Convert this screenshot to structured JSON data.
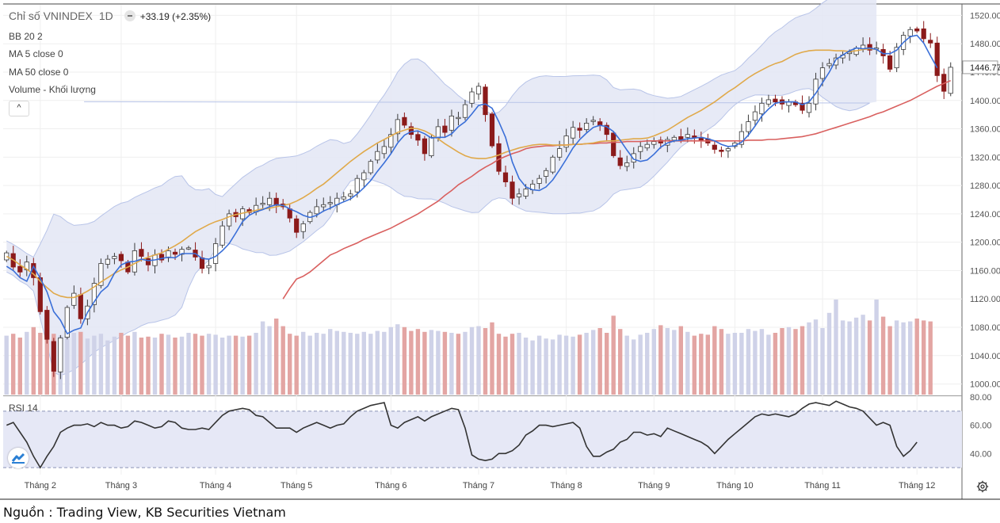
{
  "header": {
    "symbol_title": "Chỉ số VNINDEX",
    "interval": "1D",
    "change": "+33.19 (+2.35%)"
  },
  "indicators": {
    "bb": "BB 20 2",
    "ma5": "MA 5 close 0",
    "ma50": "MA 50 close 0",
    "volume": "Volume - Khối lượng",
    "rsi": "RSI 14"
  },
  "collapse_symbol": "^",
  "source": "Nguồn : Trading View, KB Securities Vietnam",
  "colors": {
    "up_candle_fill": "#ffffff",
    "up_candle_border": "#3a3a3a",
    "down_candle": "#8b1a1a",
    "ma5": "#3a6fd8",
    "ma20": "#e0a94a",
    "ma50": "#d9605f",
    "bb_fill": "#e3e6f4",
    "bb_line": "#b8c4e8",
    "volume_up": "#cfd2e8",
    "volume_down": "#e3a5a3",
    "rsi_line": "#333333",
    "rsi_band": "#e6e8f6"
  },
  "chart_data": {
    "type": "candlestick",
    "title": "Chỉ số VNINDEX",
    "price_axis": {
      "ticks": [
        1000,
        1040,
        1080,
        1120,
        1160,
        1200,
        1240,
        1280,
        1320,
        1360,
        1400,
        1440,
        1480,
        1520
      ],
      "labels": [
        "1000.00",
        "1040.00",
        "1080.00",
        "1120.00",
        "1160.00",
        "1200.00",
        "1240.00",
        "1280.00",
        "1320.00",
        "1360.00",
        "1400.00",
        "1440.00",
        "1480.00",
        "1520.00"
      ],
      "range": [
        985,
        1535
      ],
      "last_price": 1446.77,
      "last_price_label": "1446.77"
    },
    "rsi_axis": {
      "labels": [
        "80.00",
        "60.00",
        "40.00"
      ],
      "ticks": [
        80,
        60,
        40
      ],
      "range": [
        25,
        80
      ],
      "overbought": 70,
      "oversold": 30
    },
    "months": [
      "Tháng 2",
      "Tháng 3",
      "Tháng 4",
      "Tháng 5",
      "Tháng 6",
      "Tháng 7",
      "Tháng 8",
      "Tháng 9",
      "Tháng 10",
      "Tháng 11",
      "Tháng 12"
    ],
    "month_start_index": [
      5,
      17,
      31,
      43,
      57,
      70,
      83,
      96,
      108,
      121,
      135
    ],
    "close": [
      1185,
      1165,
      1158,
      1172,
      1150,
      1102,
      1063,
      1018,
      1065,
      1108,
      1128,
      1092,
      1110,
      1142,
      1170,
      1176,
      1180,
      1174,
      1158,
      1188,
      1180,
      1168,
      1182,
      1175,
      1188,
      1183,
      1190,
      1192,
      1179,
      1163,
      1167,
      1198,
      1223,
      1240,
      1236,
      1247,
      1242,
      1252,
      1255,
      1262,
      1252,
      1250,
      1234,
      1214,
      1226,
      1242,
      1250,
      1253,
      1256,
      1262,
      1264,
      1268,
      1290,
      1298,
      1314,
      1328,
      1335,
      1352,
      1373,
      1365,
      1352,
      1344,
      1325,
      1348,
      1363,
      1355,
      1378,
      1376,
      1394,
      1412,
      1420,
      1380,
      1336,
      1300,
      1285,
      1262,
      1268,
      1275,
      1282,
      1290,
      1301,
      1320,
      1332,
      1350,
      1362,
      1358,
      1368,
      1372,
      1365,
      1352,
      1322,
      1308,
      1312,
      1325,
      1335,
      1338,
      1342,
      1340,
      1345,
      1348,
      1345,
      1352,
      1348,
      1344,
      1340,
      1331,
      1328,
      1332,
      1340,
      1356,
      1370,
      1384,
      1396,
      1401,
      1398,
      1395,
      1398,
      1394,
      1386,
      1396,
      1430,
      1446,
      1452,
      1460,
      1464,
      1468,
      1474,
      1478,
      1471,
      1474,
      1463,
      1444,
      1475,
      1492,
      1500,
      1498,
      1487,
      1481,
      1435,
      1413,
      1446.77
    ],
    "volume_millions": [
      620,
      640,
      600,
      660,
      710,
      650,
      590,
      640,
      620,
      630,
      650,
      660,
      590,
      620,
      640,
      570,
      610,
      650,
      620,
      660,
      600,
      610,
      600,
      640,
      630,
      600,
      610,
      650,
      640,
      620,
      640,
      630,
      600,
      620,
      620,
      610,
      620,
      650,
      770,
      720,
      800,
      720,
      640,
      620,
      660,
      620,
      650,
      640,
      690,
      670,
      660,
      650,
      640,
      660,
      640,
      670,
      660,
      710,
      740,
      710,
      670,
      690,
      660,
      680,
      670,
      660,
      650,
      640,
      660,
      710,
      720,
      700,
      760,
      640,
      610,
      640,
      650,
      600,
      570,
      620,
      590,
      580,
      630,
      620,
      610,
      630,
      650,
      680,
      700,
      650,
      830,
      690,
      620,
      580,
      630,
      650,
      690,
      730,
      700,
      680,
      720,
      660,
      620,
      640,
      630,
      720,
      690,
      640,
      650,
      650,
      690,
      670,
      690,
      630,
      650,
      700,
      710,
      690,
      720,
      760,
      790,
      700,
      860,
      1000,
      780,
      770,
      810,
      840,
      780,
      1000,
      820,
      720,
      780,
      760,
      770,
      800,
      780,
      770
    ],
    "ma5": [
      1166,
      1160,
      1150,
      1145,
      1166,
      1149,
      1130,
      1102,
      1090,
      1071,
      1076,
      1079,
      1101,
      1116,
      1130,
      1138,
      1156,
      1168,
      1172,
      1173,
      1176,
      1174,
      1175,
      1177,
      1179,
      1178,
      1184,
      1184,
      1184,
      1177,
      1176,
      1180,
      1188,
      1198,
      1213,
      1229,
      1238,
      1243,
      1246,
      1250,
      1253,
      1252,
      1247,
      1243,
      1238,
      1235,
      1238,
      1244,
      1248,
      1253,
      1257,
      1261,
      1268,
      1277,
      1287,
      1300,
      1312,
      1325,
      1340,
      1351,
      1356,
      1357,
      1353,
      1347,
      1348,
      1348,
      1353,
      1363,
      1370,
      1381,
      1393,
      1395,
      1389,
      1370,
      1348,
      1313,
      1290,
      1278,
      1274,
      1273,
      1278,
      1288,
      1302,
      1317,
      1333,
      1345,
      1354,
      1362,
      1365,
      1363,
      1356,
      1344,
      1330,
      1317,
      1314,
      1316,
      1324,
      1334,
      1340,
      1343,
      1344,
      1346,
      1347,
      1348,
      1346,
      1343,
      1338,
      1335,
      1336,
      1341,
      1351,
      1364,
      1378,
      1388,
      1396,
      1398,
      1398,
      1398,
      1394,
      1398,
      1410,
      1425,
      1440,
      1458,
      1464,
      1470,
      1474,
      1473,
      1474,
      1472,
      1466,
      1466,
      1471,
      1482,
      1490,
      1492,
      1481,
      1463,
      1446
    ],
    "ma20": [
      1180,
      1175,
      1168,
      1162,
      1155,
      1145,
      1136,
      1128,
      1124,
      1122,
      1122,
      1126,
      1131,
      1137,
      1144,
      1150,
      1156,
      1161,
      1165,
      1170,
      1175,
      1179,
      1182,
      1185,
      1190,
      1195,
      1201,
      1208,
      1215,
      1220,
      1225,
      1229,
      1232,
      1236,
      1239,
      1241,
      1243,
      1245,
      1247,
      1248,
      1250,
      1252,
      1254,
      1258,
      1263,
      1269,
      1276,
      1282,
      1290,
      1298,
      1306,
      1314,
      1321,
      1328,
      1334,
      1340,
      1345,
      1350,
      1355,
      1358,
      1361,
      1360,
      1357,
      1352,
      1346,
      1339,
      1333,
      1327,
      1322,
      1319,
      1318,
      1318,
      1320,
      1323,
      1327,
      1330,
      1333,
      1335,
      1337,
      1338,
      1338,
      1337,
      1337,
      1337,
      1338,
      1338,
      1339,
      1340,
      1342,
      1343,
      1343,
      1344,
      1345,
      1346,
      1346,
      1347,
      1350,
      1354,
      1358,
      1364,
      1370,
      1376,
      1381,
      1386,
      1392,
      1398,
      1405,
      1412,
      1418,
      1425,
      1432,
      1438,
      1443,
      1448,
      1452,
      1455,
      1460,
      1465,
      1468,
      1470,
      1471,
      1471,
      1471,
      1470,
      1470,
      1469,
      1470,
      1472,
      1473,
      1472
    ],
    "ma50": [
      1120,
      1135,
      1148,
      1152,
      1158,
      1166,
      1174,
      1182,
      1186,
      1191,
      1195,
      1199,
      1204,
      1208,
      1212,
      1216,
      1220,
      1225,
      1230,
      1235,
      1240,
      1246,
      1252,
      1258,
      1266,
      1273,
      1281,
      1287,
      1293,
      1300,
      1306,
      1311,
      1317,
      1321,
      1325,
      1328,
      1332,
      1334,
      1335,
      1336,
      1336,
      1337,
      1337,
      1338,
      1338,
      1339,
      1339,
      1340,
      1340,
      1341,
      1341,
      1342,
      1342,
      1342,
      1343,
      1343,
      1343,
      1343,
      1343,
      1343,
      1343,
      1343,
      1343,
      1343,
      1343,
      1343,
      1343,
      1343,
      1343,
      1344,
      1344,
      1344,
      1345,
      1345,
      1346,
      1347,
      1348,
      1349,
      1351,
      1353,
      1356,
      1359,
      1362,
      1365,
      1368,
      1371,
      1374,
      1377,
      1381,
      1384,
      1388,
      1392,
      1396,
      1400,
      1405,
      1410,
      1415,
      1420,
      1424,
      1428
    ],
    "rsi": [
      60,
      62,
      55,
      48,
      38,
      30,
      38,
      45,
      55,
      58,
      60,
      60,
      61,
      59,
      62,
      60,
      60,
      58,
      59,
      63,
      62,
      60,
      58,
      59,
      63,
      62,
      58,
      57,
      57,
      58,
      57,
      62,
      67,
      70,
      71,
      72,
      71,
      67,
      66,
      62,
      58,
      58,
      58,
      55,
      58,
      60,
      62,
      60,
      58,
      60,
      61,
      66,
      70,
      72,
      74,
      75,
      76,
      60,
      58,
      62,
      64,
      66,
      63,
      66,
      68,
      70,
      72,
      71,
      58,
      39,
      36,
      35,
      36,
      40,
      40,
      42,
      46,
      53,
      56,
      60,
      60,
      59,
      60,
      61,
      62,
      58,
      45,
      38,
      38,
      41,
      43,
      48,
      50,
      55,
      55,
      53,
      54,
      52,
      58,
      56,
      54,
      52,
      50,
      48,
      45,
      40,
      45,
      50,
      54,
      58,
      62,
      66,
      68,
      67,
      68,
      67,
      66,
      68,
      72,
      75,
      76,
      75,
      74,
      77,
      75,
      73,
      72,
      70,
      65,
      60,
      62,
      60,
      45,
      38,
      42,
      48
    ],
    "ohlc_note": "Daily candles for VNINDEX, approximately Jan to mid-Dec; values estimated from chart."
  }
}
